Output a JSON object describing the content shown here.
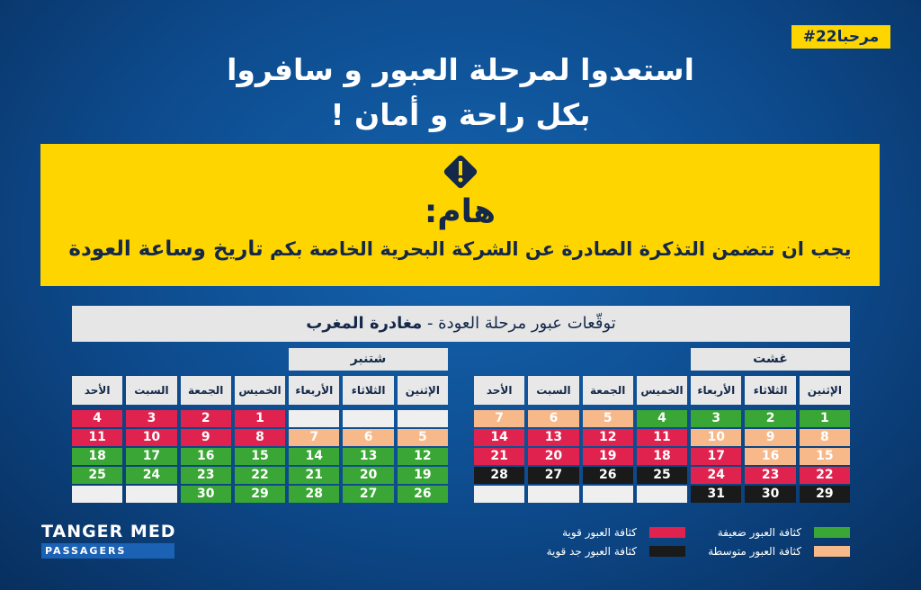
{
  "hashtag": "#مرحبا22",
  "title": [
    "استعدوا لمرحلة العبور و سافروا",
    "بكل راحة و أمان !"
  ],
  "notice": {
    "heading": "هام:",
    "text": "يجب ان تتضمن التذكرة الصادرة عن الشركة البحرية الخاصة بكم",
    "emphasis": "تاريخ وساعة العودة"
  },
  "table_title": {
    "text": "توقّعات عبور مرحلة العودة -",
    "emphasis": "مغادرة المغرب"
  },
  "weekdays": [
    "الإثنين",
    "الثلاثاء",
    "الأربعاء",
    "الخميس",
    "الجمعة",
    "السبت",
    "الأحد"
  ],
  "empty_color": "#efefef",
  "calendars": [
    {
      "month": "غشت",
      "rows": [
        [
          {
            "day": 1,
            "color": "#3aa635"
          },
          {
            "day": 2,
            "color": "#3aa635"
          },
          {
            "day": 3,
            "color": "#3aa635"
          },
          {
            "day": 4,
            "color": "#3aa635"
          },
          {
            "day": 5,
            "color": "#f7b88a"
          },
          {
            "day": 6,
            "color": "#f7b88a"
          },
          {
            "day": 7,
            "color": "#f7b88a"
          }
        ],
        [
          {
            "day": 8,
            "color": "#f7b88a"
          },
          {
            "day": 9,
            "color": "#f7b88a"
          },
          {
            "day": 10,
            "color": "#f7b88a"
          },
          {
            "day": 11,
            "color": "#e0234e"
          },
          {
            "day": 12,
            "color": "#e0234e"
          },
          {
            "day": 13,
            "color": "#e0234e"
          },
          {
            "day": 14,
            "color": "#e0234e"
          }
        ],
        [
          {
            "day": 15,
            "color": "#f7b88a"
          },
          {
            "day": 16,
            "color": "#f7b88a"
          },
          {
            "day": 17,
            "color": "#e0234e"
          },
          {
            "day": 18,
            "color": "#e0234e"
          },
          {
            "day": 19,
            "color": "#e0234e"
          },
          {
            "day": 20,
            "color": "#e0234e"
          },
          {
            "day": 21,
            "color": "#e0234e"
          }
        ],
        [
          {
            "day": 22,
            "color": "#e0234e"
          },
          {
            "day": 23,
            "color": "#e0234e"
          },
          {
            "day": 24,
            "color": "#e0234e"
          },
          {
            "day": 25,
            "color": "#1a1a1a"
          },
          {
            "day": 26,
            "color": "#1a1a1a"
          },
          {
            "day": 27,
            "color": "#1a1a1a"
          },
          {
            "day": 28,
            "color": "#1a1a1a"
          }
        ],
        [
          {
            "day": 29,
            "color": "#1a1a1a"
          },
          {
            "day": 30,
            "color": "#1a1a1a"
          },
          {
            "day": 31,
            "color": "#1a1a1a"
          },
          null,
          null,
          null,
          null
        ]
      ]
    },
    {
      "month": "شتنبر",
      "rows": [
        [
          null,
          null,
          null,
          {
            "day": 1,
            "color": "#e0234e"
          },
          {
            "day": 2,
            "color": "#e0234e"
          },
          {
            "day": 3,
            "color": "#e0234e"
          },
          {
            "day": 4,
            "color": "#e0234e"
          }
        ],
        [
          {
            "day": 5,
            "color": "#f7b88a"
          },
          {
            "day": 6,
            "color": "#f7b88a"
          },
          {
            "day": 7,
            "color": "#f7b88a"
          },
          {
            "day": 8,
            "color": "#e0234e"
          },
          {
            "day": 9,
            "color": "#e0234e"
          },
          {
            "day": 10,
            "color": "#e0234e"
          },
          {
            "day": 11,
            "color": "#e0234e"
          }
        ],
        [
          {
            "day": 12,
            "color": "#3aa635"
          },
          {
            "day": 13,
            "color": "#3aa635"
          },
          {
            "day": 14,
            "color": "#3aa635"
          },
          {
            "day": 15,
            "color": "#3aa635"
          },
          {
            "day": 16,
            "color": "#3aa635"
          },
          {
            "day": 17,
            "color": "#3aa635"
          },
          {
            "day": 18,
            "color": "#3aa635"
          }
        ],
        [
          {
            "day": 19,
            "color": "#3aa635"
          },
          {
            "day": 20,
            "color": "#3aa635"
          },
          {
            "day": 21,
            "color": "#3aa635"
          },
          {
            "day": 22,
            "color": "#3aa635"
          },
          {
            "day": 23,
            "color": "#3aa635"
          },
          {
            "day": 24,
            "color": "#3aa635"
          },
          {
            "day": 25,
            "color": "#3aa635"
          }
        ],
        [
          {
            "day": 26,
            "color": "#3aa635"
          },
          {
            "day": 27,
            "color": "#3aa635"
          },
          {
            "day": 28,
            "color": "#3aa635"
          },
          {
            "day": 29,
            "color": "#3aa635"
          },
          {
            "day": 30,
            "color": "#3aa635"
          },
          null,
          null
        ]
      ]
    }
  ],
  "legend": [
    {
      "label": "كثافة العبور ضعيفة",
      "color": "#3aa635"
    },
    {
      "label": "كثافة العبور متوسطة",
      "color": "#f7b88a"
    },
    {
      "label": "كثافة العبور قوية",
      "color": "#e0234e"
    },
    {
      "label": "كثافة العبور جد قوية",
      "color": "#1a1a1a"
    }
  ],
  "logo": {
    "name": "TANGER MED",
    "subtitle": "PASSAGERS"
  }
}
